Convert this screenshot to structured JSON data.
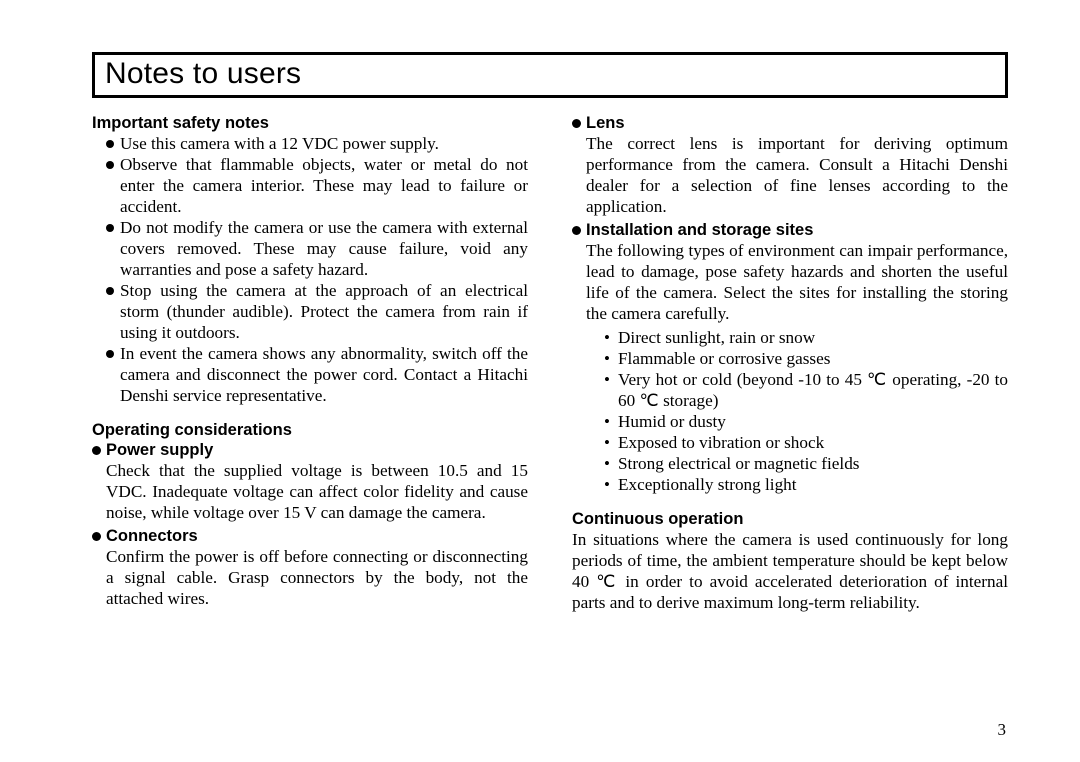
{
  "title": "Notes to users",
  "page_number": "3",
  "left": {
    "safety": {
      "heading": "Important safety notes",
      "items": [
        "Use this camera with a 12 VDC power supply.",
        "Observe that flammable objects, water or metal do not enter the camera interior.  These may lead to failure or accident.",
        "Do not modify the camera or use the camera with external covers removed.  These may cause failure, void any warranties and pose a safety hazard.",
        "Stop using the camera at the approach of an electrical storm (thunder audible).  Protect the camera from rain if using it outdoors.",
        "In event the camera shows any abnormality, switch off the camera and disconnect the power cord.   Contact  a  Hitachi  Denshi  service representative."
      ]
    },
    "operating": {
      "heading": "Operating considerations",
      "power": {
        "heading": "Power supply",
        "text": "Check that the supplied voltage is between 10.5 and 15 VDC.  Inadequate voltage can affect color fidelity and cause noise, while voltage over 15 V can damage the camera."
      },
      "connectors": {
        "heading": "Connectors",
        "text": "Confirm the power is off before connecting or disconnecting a signal cable.  Grasp connectors by the body, not the attached wires."
      }
    }
  },
  "right": {
    "lens": {
      "heading": "Lens",
      "text": "The correct lens is important for deriving optimum performance from the camera. Consult a Hitachi Denshi dealer for a selection of fine lenses according to the application."
    },
    "install": {
      "heading": "Installation and storage sites",
      "intro": "The following types of environment can impair performance, lead to damage, pose safety hazards and shorten the useful life of the camera.  Select the sites for installing the storing the camera carefully.",
      "items": [
        "Direct sunlight, rain or snow",
        "Flammable or corrosive gasses",
        "Very hot or cold (beyond -10 to 45 ℃ operating, -20 to 60 ℃ storage)",
        "Humid or dusty",
        "Exposed to vibration or shock",
        "Strong electrical or magnetic fields",
        "Exceptionally strong light"
      ]
    },
    "continuous": {
      "heading": "Continuous operation",
      "text": "In situations where the camera is used continuously for long periods of time, the ambient temperature should be kept below 40 ℃ in order to avoid accelerated deterioration of internal parts and to derive maximum long-term reliability."
    }
  }
}
